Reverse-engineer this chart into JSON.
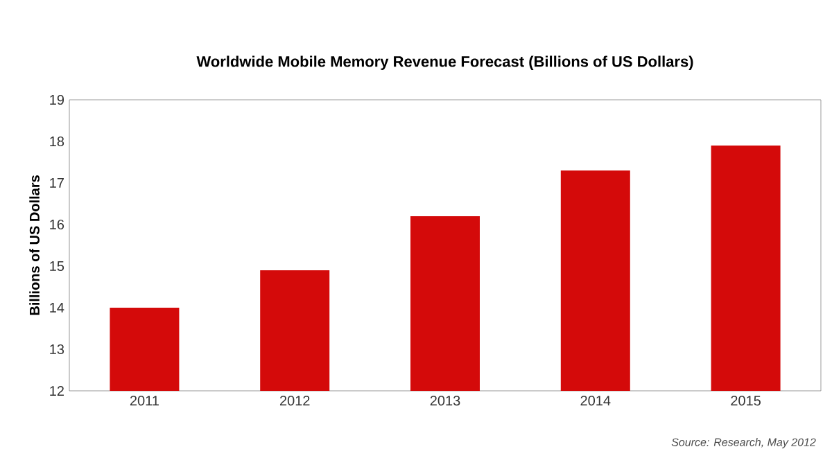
{
  "chart_data": {
    "type": "bar",
    "title": "Worldwide Mobile Memory Revenue Forecast (Billions of US Dollars)",
    "ylabel": "Billions of US Dollars",
    "categories": [
      "2011",
      "2012",
      "2013",
      "2014",
      "2015"
    ],
    "values": [
      14.0,
      14.9,
      16.2,
      17.3,
      17.9
    ],
    "color": "#d40a0a",
    "ylim": [
      12,
      19
    ],
    "yticks": [
      12,
      13,
      14,
      15,
      16,
      17,
      18,
      19
    ],
    "grid": false,
    "annotations": [
      "Source: Research, May 2012"
    ]
  }
}
